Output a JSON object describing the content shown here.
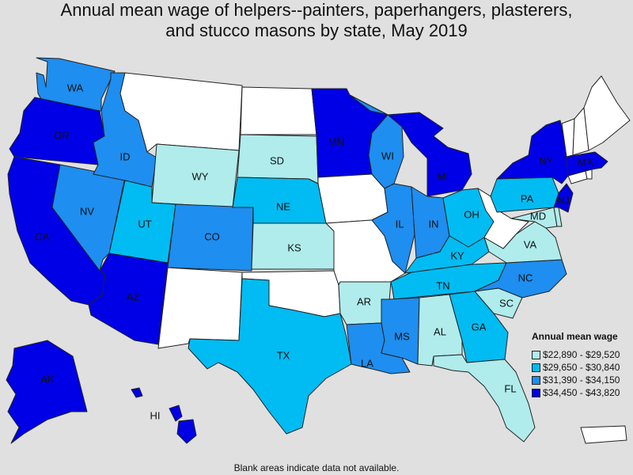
{
  "title": {
    "line1": "Annual mean wage of helpers--painters, paperhangers, plasterers,",
    "line2": "and stucco masons by state, May 2019"
  },
  "legend": {
    "title": "Annual mean wage",
    "items": [
      {
        "label": "$22,890 - $29,520",
        "color": "#b0ecec"
      },
      {
        "label": "$29,650 - $30,840",
        "color": "#00bcf2"
      },
      {
        "label": "$31,390 - $34,150",
        "color": "#1e8ef0"
      },
      {
        "label": "$34,450 - $43,820",
        "color": "#0000e6"
      }
    ]
  },
  "no_data_color": "#ffffff",
  "footnote": "Blank areas indicate data not available.",
  "states": {
    "WA": {
      "label": "WA",
      "class": 2
    },
    "OR": {
      "label": "OR",
      "class": 3
    },
    "CA": {
      "label": "CA",
      "class": 3
    },
    "NV": {
      "label": "NV",
      "class": 2
    },
    "ID": {
      "label": "ID",
      "class": 2
    },
    "MT": {
      "label": "",
      "class": null
    },
    "WY": {
      "label": "WY",
      "class": 0
    },
    "UT": {
      "label": "UT",
      "class": 1
    },
    "AZ": {
      "label": "AZ",
      "class": 3
    },
    "CO": {
      "label": "CO",
      "class": 2
    },
    "NM": {
      "label": "",
      "class": null
    },
    "ND": {
      "label": "",
      "class": null
    },
    "SD": {
      "label": "SD",
      "class": 0
    },
    "NE": {
      "label": "NE",
      "class": 1
    },
    "KS": {
      "label": "KS",
      "class": 0
    },
    "OK": {
      "label": "",
      "class": null
    },
    "TX": {
      "label": "TX",
      "class": 1
    },
    "MN": {
      "label": "MN",
      "class": 3
    },
    "IA": {
      "label": "",
      "class": null
    },
    "MO": {
      "label": "",
      "class": null
    },
    "AR": {
      "label": "AR",
      "class": 0
    },
    "LA": {
      "label": "LA",
      "class": 2
    },
    "WI": {
      "label": "WI",
      "class": 2
    },
    "IL": {
      "label": "IL",
      "class": 2
    },
    "MI": {
      "label": "MI",
      "class": 3
    },
    "IN": {
      "label": "IN",
      "class": 2
    },
    "OH": {
      "label": "OH",
      "class": 1
    },
    "KY": {
      "label": "KY",
      "class": 1
    },
    "TN": {
      "label": "TN",
      "class": 1
    },
    "MS": {
      "label": "MS",
      "class": 2
    },
    "AL": {
      "label": "AL",
      "class": 0
    },
    "GA": {
      "label": "GA",
      "class": 1
    },
    "FL": {
      "label": "FL",
      "class": 0
    },
    "SC": {
      "label": "SC",
      "class": 0
    },
    "NC": {
      "label": "NC",
      "class": 2
    },
    "VA": {
      "label": "VA",
      "class": 0
    },
    "WV": {
      "label": "",
      "class": null
    },
    "PA": {
      "label": "PA",
      "class": 1
    },
    "NY": {
      "label": "NY",
      "class": 3
    },
    "MD": {
      "label": "MD",
      "class": 0
    },
    "DE": {
      "label": "",
      "class": 0
    },
    "NJ": {
      "label": "NJ",
      "class": 3
    },
    "CT": {
      "label": "",
      "class": null
    },
    "RI": {
      "label": "",
      "class": null
    },
    "MA": {
      "label": "MA",
      "class": 3
    },
    "VT": {
      "label": "",
      "class": null
    },
    "NH": {
      "label": "",
      "class": null
    },
    "ME": {
      "label": "",
      "class": null
    },
    "AK": {
      "label": "AK",
      "class": 3
    },
    "HI": {
      "label": "HI",
      "class": 3
    },
    "PR": {
      "label": "",
      "class": null
    }
  }
}
